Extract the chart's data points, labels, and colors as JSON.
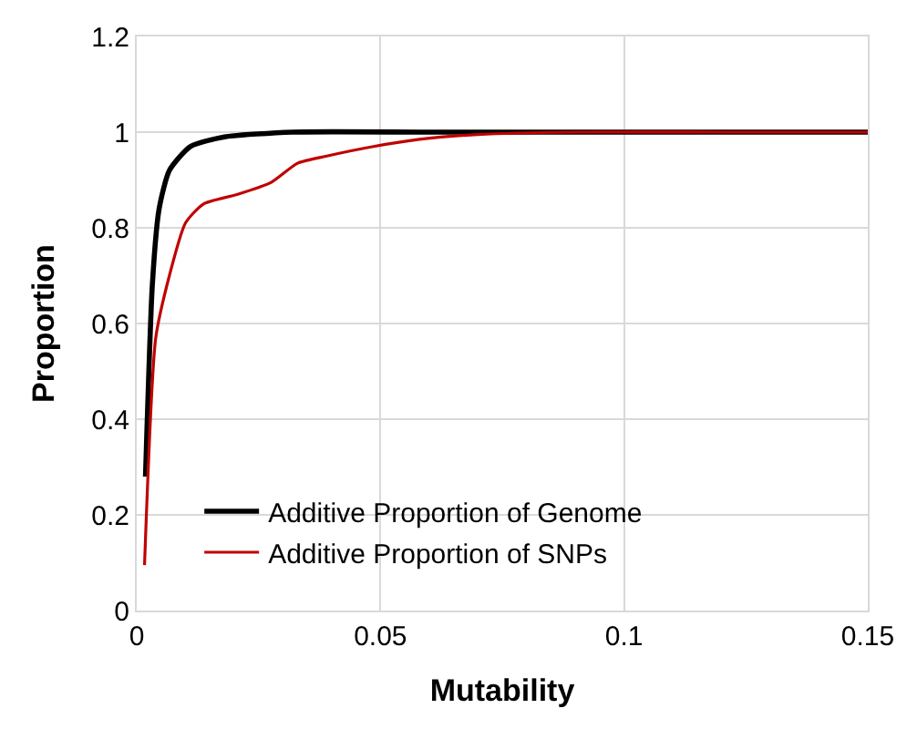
{
  "chart_data": {
    "type": "line",
    "xlabel": "Mutability",
    "ylabel": "Proportion",
    "xlim": [
      0,
      0.15
    ],
    "ylim": [
      0,
      1.2
    ],
    "xticks": [
      0,
      0.05,
      0.1,
      0.15
    ],
    "yticks": [
      0,
      0.2,
      0.4,
      0.6,
      0.8,
      1,
      1.2
    ],
    "grid": true,
    "legend": "bottom",
    "marker": "none",
    "line_style": "solid",
    "series": [
      {
        "name": "Additive Proportion of Genome",
        "color": "#000000",
        "x": [
          0.0018,
          0.0032,
          0.0046,
          0.0067,
          0.011,
          0.018,
          0.032,
          0.06,
          0.1,
          0.15
        ],
        "values": [
          0.28,
          0.68,
          0.84,
          0.92,
          0.97,
          0.99,
          1.0,
          1.0,
          1.0,
          1.0
        ]
      },
      {
        "name": "Additive Proportion of SNPs",
        "color": "#c00000",
        "x": [
          0.0016,
          0.0039,
          0.0067,
          0.01,
          0.0137,
          0.0207,
          0.0276,
          0.033,
          0.039,
          0.0486,
          0.058,
          0.07,
          0.09,
          0.12,
          0.15
        ],
        "values": [
          0.095,
          0.57,
          0.7,
          0.81,
          0.85,
          0.87,
          0.895,
          0.935,
          0.95,
          0.97,
          0.985,
          0.995,
          1.0,
          1.0,
          1.0
        ]
      }
    ]
  }
}
